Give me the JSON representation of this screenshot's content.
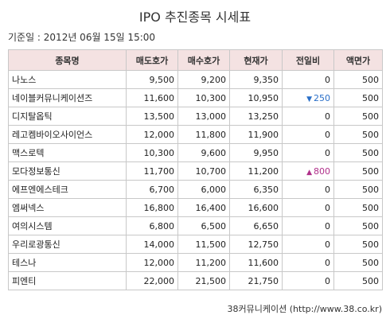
{
  "title": "IPO 추진종목 시세표",
  "base_date": "기준일 : 2012년 06월 15일 15:00",
  "columns": [
    "종목명",
    "매도호가",
    "매수호가",
    "현재가",
    "전일비",
    "액면가"
  ],
  "rows": [
    {
      "name": "나노스",
      "ask": "9,500",
      "bid": "9,200",
      "price": "9,350",
      "change": "0",
      "direction": "none",
      "par": "500"
    },
    {
      "name": "네이블커뮤니케이션즈",
      "ask": "11,600",
      "bid": "10,300",
      "price": "10,950",
      "change": "250",
      "direction": "down",
      "par": "500"
    },
    {
      "name": "디지탈옵틱",
      "ask": "13,500",
      "bid": "13,000",
      "price": "13,250",
      "change": "0",
      "direction": "none",
      "par": "500"
    },
    {
      "name": "레고켐바이오사이언스",
      "ask": "12,000",
      "bid": "11,800",
      "price": "11,900",
      "change": "0",
      "direction": "none",
      "par": "500"
    },
    {
      "name": "맥스로텍",
      "ask": "10,300",
      "bid": "9,600",
      "price": "9,950",
      "change": "0",
      "direction": "none",
      "par": "500"
    },
    {
      "name": "모다정보통신",
      "ask": "11,700",
      "bid": "10,700",
      "price": "11,200",
      "change": "800",
      "direction": "up",
      "par": "500"
    },
    {
      "name": "에프엔에스테크",
      "ask": "6,700",
      "bid": "6,000",
      "price": "6,350",
      "change": "0",
      "direction": "none",
      "par": "500"
    },
    {
      "name": "엠써넥스",
      "ask": "16,800",
      "bid": "16,400",
      "price": "16,600",
      "change": "0",
      "direction": "none",
      "par": "500"
    },
    {
      "name": "여의시스템",
      "ask": "6,800",
      "bid": "6,500",
      "price": "6,650",
      "change": "0",
      "direction": "none",
      "par": "500"
    },
    {
      "name": "우리로광통신",
      "ask": "14,000",
      "bid": "11,500",
      "price": "12,750",
      "change": "0",
      "direction": "none",
      "par": "500"
    },
    {
      "name": "테스나",
      "ask": "12,000",
      "bid": "11,200",
      "price": "11,600",
      "change": "0",
      "direction": "none",
      "par": "500"
    },
    {
      "name": "피엔티",
      "ask": "22,000",
      "bid": "21,500",
      "price": "21,750",
      "change": "0",
      "direction": "none",
      "par": "500"
    }
  ],
  "source": "38커뮤니케이션 (http://www.38.co.kr)",
  "colors": {
    "header_bg": "#f4e2e2",
    "down": "#2a6fc8",
    "up": "#b0308a",
    "border": "#c8c8c8"
  }
}
